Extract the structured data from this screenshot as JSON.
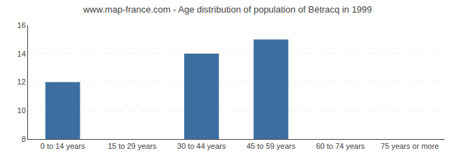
{
  "chart_data": {
    "type": "bar",
    "title": "www.map-france.com - Age distribution of population of Bétracq in 1999",
    "categories": [
      "0 to 14 years",
      "15 to 29 years",
      "30 to 44 years",
      "45 to 59 years",
      "60 to 74 years",
      "75 years or more"
    ],
    "values": [
      12,
      8,
      14,
      15,
      8,
      8
    ],
    "color": "#3c6fa0",
    "ylim": [
      8,
      16
    ],
    "yticks": [
      8,
      10,
      12,
      14,
      16
    ],
    "grid": true
  }
}
